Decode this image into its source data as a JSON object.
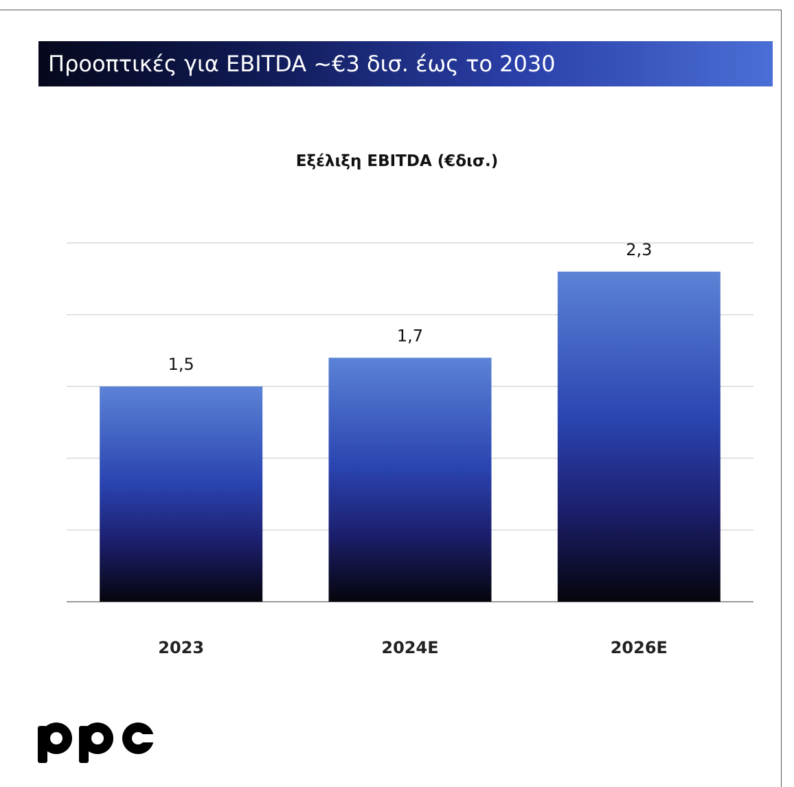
{
  "banner": {
    "title": "Προοπτικές για EBITDA ~€3 δισ. έως το 2030"
  },
  "chart_data": {
    "type": "bar",
    "title": "Εξέλιξη EBITDA (€δισ.)",
    "categories": [
      "2023",
      "2024E",
      "2026E"
    ],
    "values": [
      1.5,
      1.7,
      2.3
    ],
    "value_labels": [
      "1,5",
      "1,7",
      "2,3"
    ],
    "ylim": [
      0,
      2.5
    ],
    "grid": true,
    "colors": {
      "bar_top": "#5b83d6",
      "bar_mid": "#1e2c8c",
      "bar_bottom": "#05050c",
      "grid": "#d7d7d7",
      "axis": "#9a9a9a"
    }
  },
  "logo": {
    "text": "ppc"
  }
}
